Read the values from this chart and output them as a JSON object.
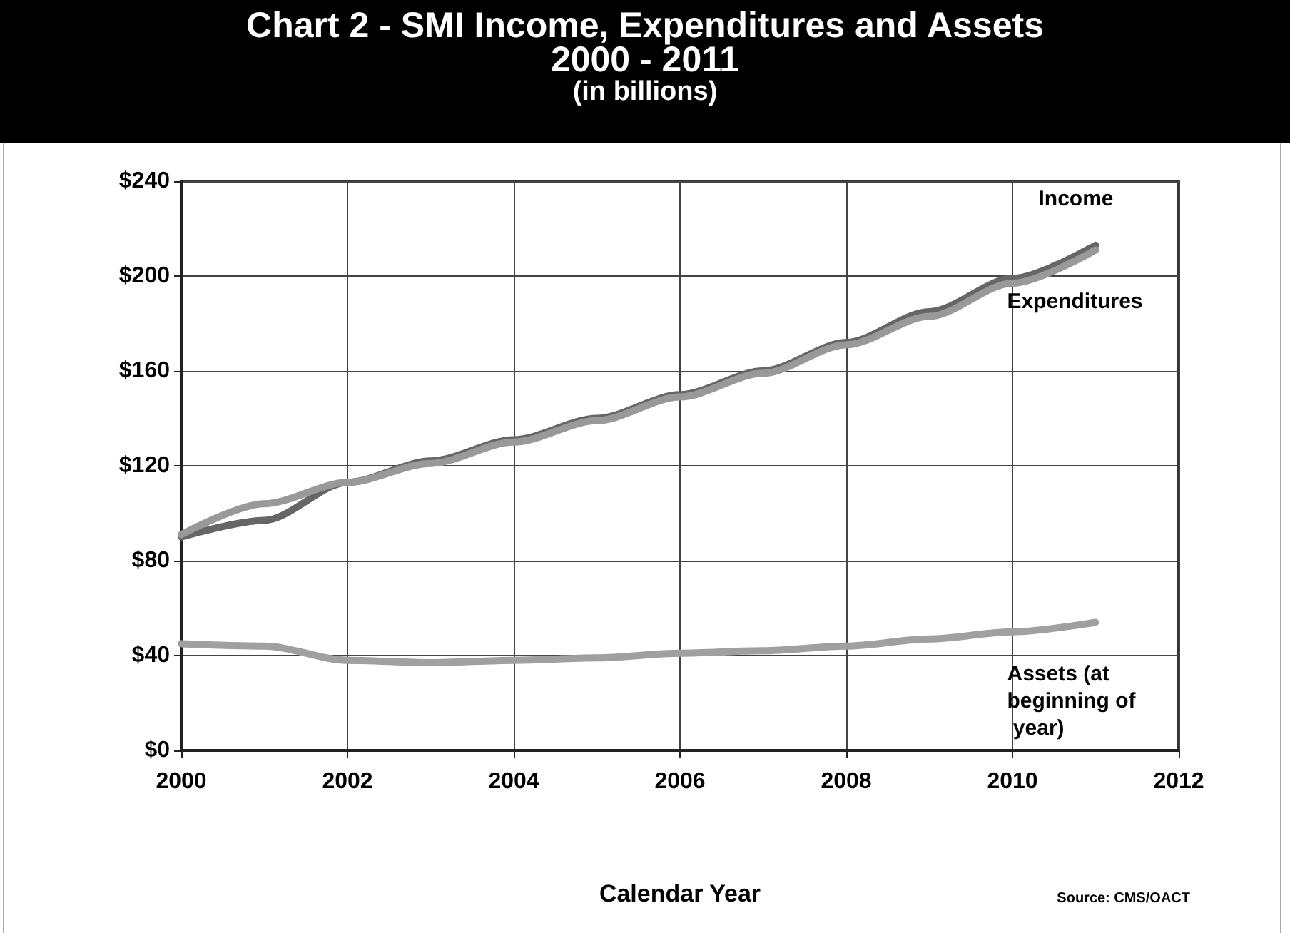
{
  "chart_data": {
    "type": "line",
    "title": "Chart 2 - SMI Income, Expenditures and Assets\n2000 - 2011",
    "subtitle": "(in billions)",
    "xlabel": "Calendar Year",
    "x": [
      2000,
      2001,
      2002,
      2003,
      2004,
      2005,
      2006,
      2007,
      2008,
      2009,
      2010,
      2011
    ],
    "series": [
      {
        "name": "Income",
        "color": "#666666",
        "values": [
          90,
          97,
          113,
          122,
          131,
          140,
          150,
          160,
          172,
          185,
          199,
          213
        ]
      },
      {
        "name": "Expenditures",
        "color": "#999999",
        "values": [
          91,
          104,
          113,
          121,
          130,
          139,
          149,
          159,
          171,
          183,
          197,
          211
        ]
      },
      {
        "name": "Assets (at beginning of year)",
        "color": "#a0a0a0",
        "values": [
          45,
          44,
          38,
          37,
          38,
          39,
          41,
          42,
          44,
          47,
          50,
          54
        ]
      }
    ],
    "xlim": [
      2000,
      2012
    ],
    "xticks": [
      2000,
      2002,
      2004,
      2006,
      2008,
      2010,
      2012
    ],
    "ylim": [
      0,
      240
    ],
    "yticks": [
      {
        "value": 0,
        "label": "$0"
      },
      {
        "value": 40,
        "label": "$40"
      },
      {
        "value": 80,
        "label": "$80"
      },
      {
        "value": 120,
        "label": "$120"
      },
      {
        "value": 160,
        "label": "$160"
      },
      {
        "value": 200,
        "label": "$200"
      },
      {
        "value": 240,
        "label": "$240"
      }
    ],
    "grid": true,
    "legend": false,
    "marker": "none",
    "line_style": "solid",
    "annotations": [
      "Source: CMS/OACT"
    ]
  }
}
